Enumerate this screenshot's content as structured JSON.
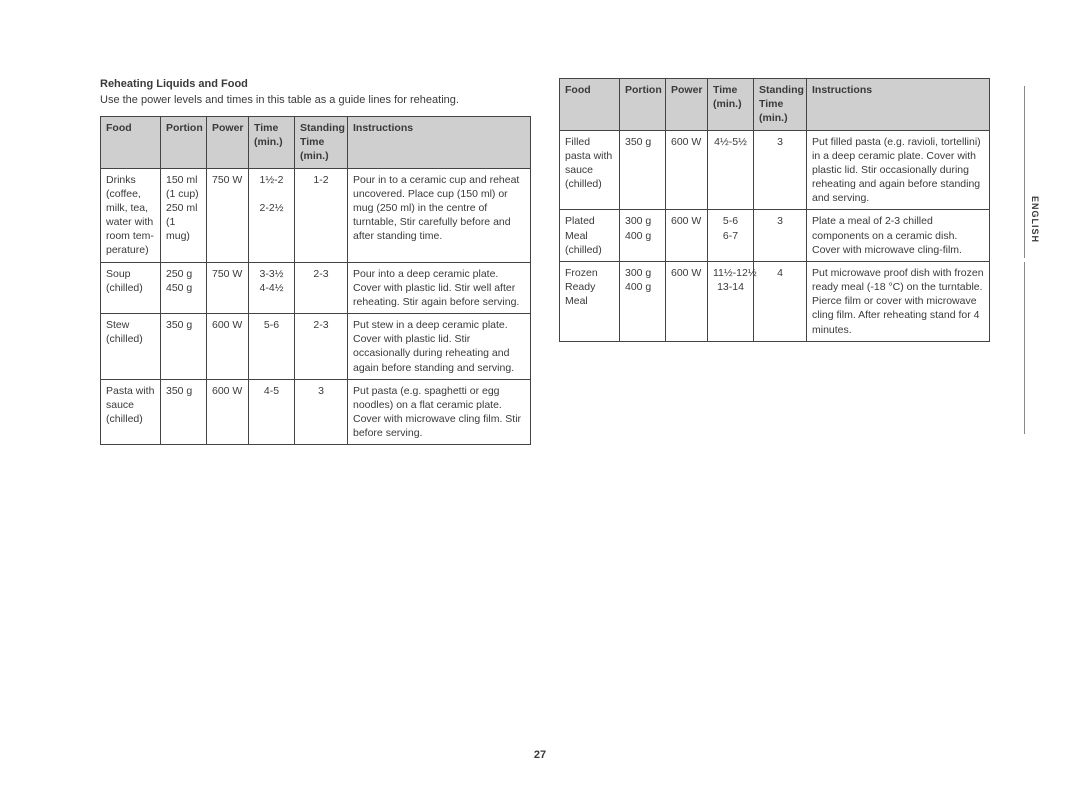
{
  "page_number": "27",
  "side_label": "ENGLISH",
  "header": {
    "title": "Reheating Liquids and Food",
    "desc": "Use the power levels and times in this table as a guide lines for reheating."
  },
  "columns": [
    "Food",
    "Portion",
    "Power",
    "Time\n(min.)",
    "Standing\nTime\n(min.)",
    "Instructions"
  ],
  "table_left": [
    {
      "food": "Drinks\n(coffee,\nmilk, tea,\nwater with\nroom tem-\nperature)",
      "portion": "150 ml\n(1 cup)\n250 ml\n(1 mug)",
      "power": "750 W",
      "time": "1½-2\n\n2-2½",
      "stand": "1-2",
      "instr": "Pour in to a ceramic cup and reheat uncovered. Place cup (150 ml) or mug (250 ml) in the centre of turntable, Stir carefully before and after standing time."
    },
    {
      "food": "Soup\n(chilled)",
      "portion": "250 g\n450 g",
      "power": "750 W",
      "time": "3-3½\n4-4½",
      "stand": "2-3",
      "instr": "Pour into a deep ceramic plate. Cover with plastic lid. Stir well after reheating. Stir again before serving."
    },
    {
      "food": "Stew\n(chilled)",
      "portion": "350 g",
      "power": "600 W",
      "time": "5-6",
      "stand": "2-3",
      "instr": "Put stew in a deep ceramic plate. Cover with plastic lid. Stir occasionally during reheating and again before standing and serving."
    },
    {
      "food": "Pasta with\nsauce\n(chilled)",
      "portion": "350 g",
      "power": "600 W",
      "time": "4-5",
      "stand": "3",
      "instr": "Put pasta (e.g. spaghetti or egg noodles) on a flat ceramic plate. Cover with microwave cling film. Stir before serving."
    }
  ],
  "table_right": [
    {
      "food": "Filled\npasta with\nsauce\n(chilled)",
      "portion": "350 g",
      "power": "600 W",
      "time": "4½-5½",
      "stand": "3",
      "instr": "Put filled pasta (e.g. ravioli, tortellini) in a deep ceramic plate. Cover with plastic lid. Stir occasionally during reheating and again before standing and serving."
    },
    {
      "food": "Plated\nMeal\n(chilled)",
      "portion": "300 g\n400 g",
      "power": "600 W",
      "time": "5-6\n6-7",
      "stand": "3",
      "instr": "Plate a meal of 2-3 chilled components on a ceramic dish. Cover with microwave cling-film."
    },
    {
      "food": "Frozen\nReady\nMeal",
      "portion": "300 g\n400 g",
      "power": "600 W",
      "time": "11½-12½\n13-14",
      "stand": "4",
      "instr": "Put microwave proof dish with frozen ready meal (-18 °C) on the turntable. Pierce film or cover with microwave cling film. After reheating stand for 4 minutes."
    }
  ],
  "style": {
    "header_bg": "#cfcfcf",
    "border_color": "#444444",
    "text_color": "#3a3a3a",
    "font_size_pt": 10.5,
    "title_font_size_pt": 11
  }
}
